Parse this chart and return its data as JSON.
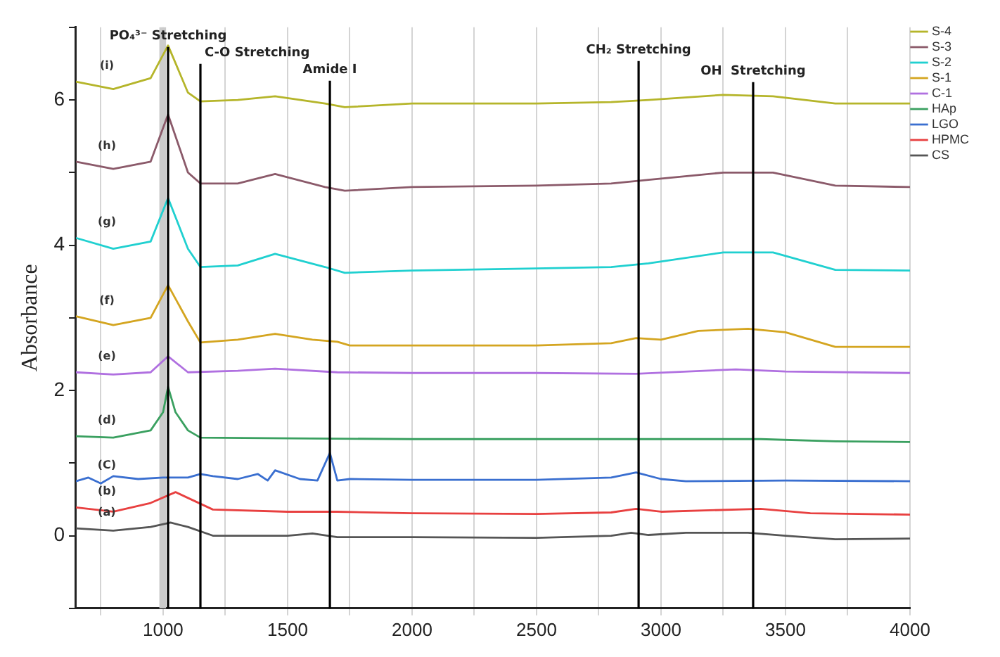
{
  "chart_data": {
    "type": "line",
    "ylabel": "Absorbance",
    "xlim": [
      650,
      4000
    ],
    "ylim": [
      -1,
      7
    ],
    "xticks": [
      {
        "value": 750,
        "label": null
      },
      1000,
      {
        "value": 1250,
        "label": null
      },
      1500,
      {
        "value": 1750,
        "label": null
      },
      2000,
      {
        "value": 2250,
        "label": null
      },
      2500,
      {
        "value": 2750,
        "label": null
      },
      3000,
      {
        "value": 3250,
        "label": null
      },
      3500,
      {
        "value": 3750,
        "label": null
      },
      4000
    ],
    "yticks": [
      {
        "value": -1,
        "label": null
      },
      0,
      {
        "value": 1,
        "label": null
      },
      2,
      {
        "value": 3,
        "label": null
      },
      4,
      {
        "value": 5,
        "label": null
      },
      6,
      {
        "value": 7,
        "label": null
      }
    ],
    "grid": "x",
    "legend": "top right",
    "marker": "none",
    "line_style": "solid",
    "series": [
      {
        "name": "S-4",
        "color": "#b5b52a",
        "x": [
          650,
          800,
          950,
          1020,
          1100,
          1150,
          1300,
          1450,
          1650,
          1730,
          2000,
          2500,
          2800,
          2950,
          3250,
          3450,
          3700,
          4000
        ],
        "values": [
          6.25,
          6.15,
          6.3,
          6.75,
          6.1,
          5.98,
          6.0,
          6.05,
          5.95,
          5.9,
          5.95,
          5.95,
          5.97,
          6.0,
          6.07,
          6.05,
          5.95,
          5.95
        ]
      },
      {
        "name": "S-3",
        "color": "#8b5a6a",
        "x": [
          650,
          800,
          950,
          1020,
          1100,
          1150,
          1300,
          1450,
          1650,
          1730,
          2000,
          2500,
          2800,
          2950,
          3250,
          3450,
          3700,
          4000
        ],
        "values": [
          5.15,
          5.05,
          5.15,
          5.8,
          5.0,
          4.85,
          4.85,
          4.98,
          4.8,
          4.75,
          4.8,
          4.82,
          4.85,
          4.9,
          5.0,
          5.0,
          4.82,
          4.8
        ]
      },
      {
        "name": "S-2",
        "color": "#20d0d0",
        "x": [
          650,
          800,
          950,
          1020,
          1100,
          1150,
          1300,
          1450,
          1650,
          1730,
          2000,
          2500,
          2800,
          2950,
          3250,
          3450,
          3700,
          4000
        ],
        "values": [
          4.1,
          3.95,
          4.05,
          4.65,
          3.95,
          3.7,
          3.72,
          3.88,
          3.7,
          3.62,
          3.65,
          3.68,
          3.7,
          3.75,
          3.9,
          3.9,
          3.66,
          3.65
        ]
      },
      {
        "name": "S-1",
        "color": "#d4a520",
        "x": [
          650,
          800,
          950,
          1020,
          1100,
          1150,
          1300,
          1450,
          1600,
          1700,
          1750,
          2000,
          2500,
          2800,
          2900,
          3000,
          3150,
          3350,
          3500,
          3700,
          4000
        ],
        "values": [
          3.02,
          2.9,
          3.0,
          3.45,
          2.95,
          2.66,
          2.7,
          2.78,
          2.7,
          2.67,
          2.62,
          2.62,
          2.62,
          2.65,
          2.72,
          2.7,
          2.82,
          2.85,
          2.8,
          2.6,
          2.6
        ]
      },
      {
        "name": "C-1",
        "color": "#b070e0",
        "x": [
          650,
          800,
          950,
          1020,
          1100,
          1300,
          1450,
          1700,
          2000,
          2500,
          2900,
          3300,
          3500,
          4000
        ],
        "values": [
          2.25,
          2.22,
          2.25,
          2.47,
          2.25,
          2.27,
          2.3,
          2.25,
          2.24,
          2.24,
          2.23,
          2.29,
          2.26,
          2.24
        ]
      },
      {
        "name": "HAp",
        "color": "#3aa060",
        "x": [
          650,
          800,
          950,
          1000,
          1020,
          1050,
          1100,
          1150,
          1500,
          2000,
          2500,
          3000,
          3400,
          3700,
          4000
        ],
        "values": [
          1.37,
          1.35,
          1.45,
          1.7,
          2.05,
          1.7,
          1.45,
          1.35,
          1.34,
          1.33,
          1.33,
          1.33,
          1.33,
          1.3,
          1.29
        ]
      },
      {
        "name": "LGO",
        "color": "#3a6fd0",
        "x": [
          650,
          700,
          750,
          800,
          900,
          1000,
          1100,
          1150,
          1200,
          1300,
          1380,
          1420,
          1450,
          1550,
          1620,
          1670,
          1700,
          1750,
          2000,
          2500,
          2800,
          2900,
          3000,
          3100,
          3500,
          4000
        ],
        "values": [
          0.75,
          0.8,
          0.72,
          0.82,
          0.78,
          0.8,
          0.8,
          0.85,
          0.82,
          0.78,
          0.85,
          0.76,
          0.9,
          0.78,
          0.76,
          1.14,
          0.76,
          0.78,
          0.77,
          0.77,
          0.8,
          0.87,
          0.78,
          0.75,
          0.76,
          0.75
        ]
      },
      {
        "name": "HPMC",
        "color": "#e84040",
        "x": [
          650,
          800,
          950,
          1050,
          1100,
          1200,
          1500,
          1700,
          2000,
          2500,
          2800,
          2900,
          3000,
          3400,
          3600,
          4000
        ],
        "values": [
          0.39,
          0.33,
          0.45,
          0.6,
          0.52,
          0.36,
          0.33,
          0.33,
          0.31,
          0.3,
          0.32,
          0.37,
          0.33,
          0.37,
          0.31,
          0.29
        ]
      },
      {
        "name": "CS",
        "color": "#555555",
        "x": [
          650,
          800,
          950,
          1030,
          1100,
          1200,
          1500,
          1600,
          1700,
          2000,
          2500,
          2800,
          2880,
          2950,
          3100,
          3350,
          3500,
          3700,
          4000
        ],
        "values": [
          0.1,
          0.07,
          0.12,
          0.18,
          0.12,
          0.0,
          0.0,
          0.03,
          -0.02,
          -0.02,
          -0.03,
          0.0,
          0.04,
          0.01,
          0.04,
          0.04,
          0.0,
          -0.05,
          -0.04
        ]
      }
    ],
    "ref_lines": [
      {
        "axis": "x",
        "value": 1020,
        "label": "PO₄³⁻ Stretching",
        "color": "#000000"
      },
      {
        "axis": "x",
        "value": 1150,
        "label": "C-O Stretching",
        "color": "#000000"
      },
      {
        "axis": "x",
        "value": 1670,
        "label": "Amide I",
        "color": "#000000"
      },
      {
        "axis": "x",
        "value": 2910,
        "label": "CH₂ Stretching",
        "color": "#000000"
      },
      {
        "axis": "x",
        "value": 3370,
        "label": "OH  Stretching",
        "color": "#000000"
      }
    ],
    "bands": [
      {
        "axis": "x",
        "from": 985,
        "to": 1012,
        "color": "#cccccc"
      }
    ],
    "annotations": [
      "(a)",
      "(b)",
      "(C)",
      "(d)",
      "(e)",
      "(f)",
      "(g)",
      "(h)",
      "(i)"
    ]
  }
}
